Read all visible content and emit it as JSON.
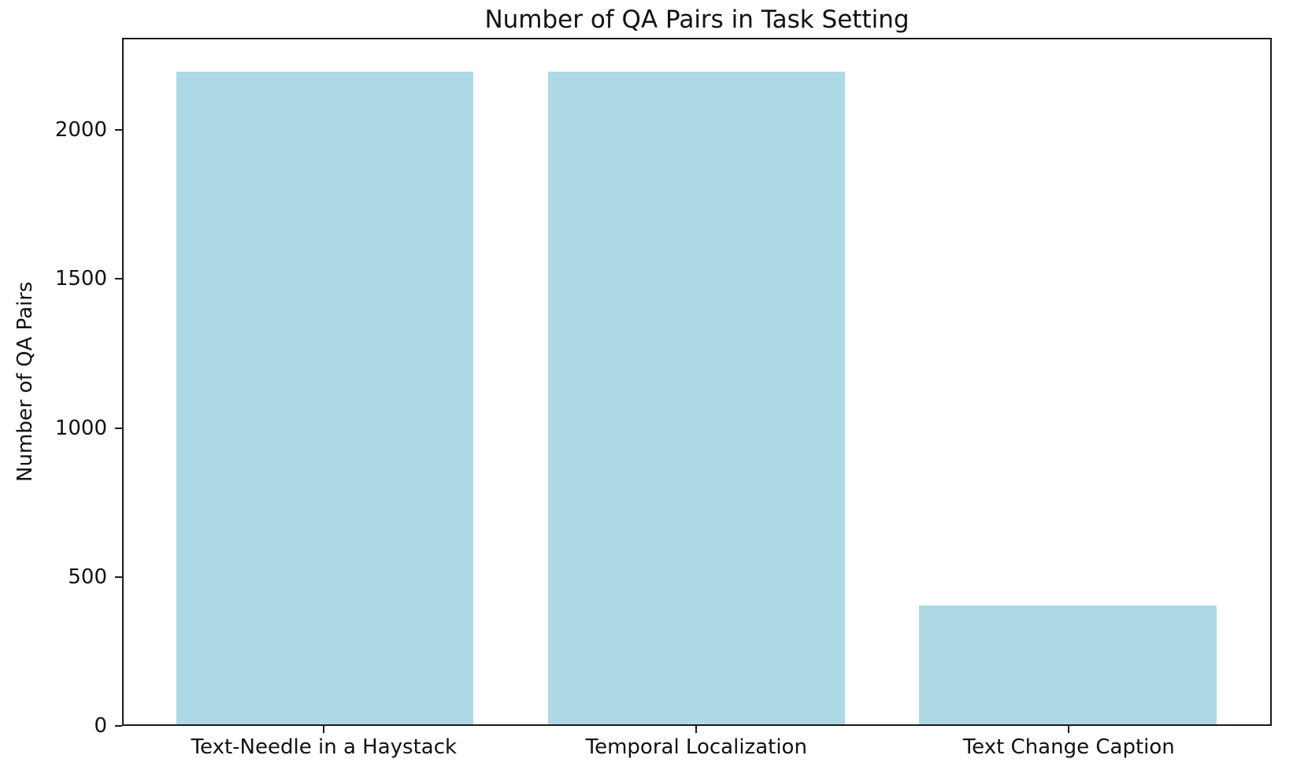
{
  "chart_data": {
    "type": "bar",
    "title": "Number of QA Pairs in Task Setting",
    "xlabel": "",
    "ylabel": "Number of QA Pairs",
    "categories": [
      "Text-Needle in a Haystack",
      "Temporal Localization",
      "Text Change Caption"
    ],
    "values": [
      2200,
      2200,
      400
    ],
    "yticks": [
      0,
      500,
      1000,
      1500,
      2000
    ],
    "ylim": [
      0,
      2310
    ],
    "bar_color": "#ADD8E6",
    "axis_color": "#1a1a1a",
    "grid": false,
    "legend": "none",
    "bar_width_fraction": 0.8
  }
}
